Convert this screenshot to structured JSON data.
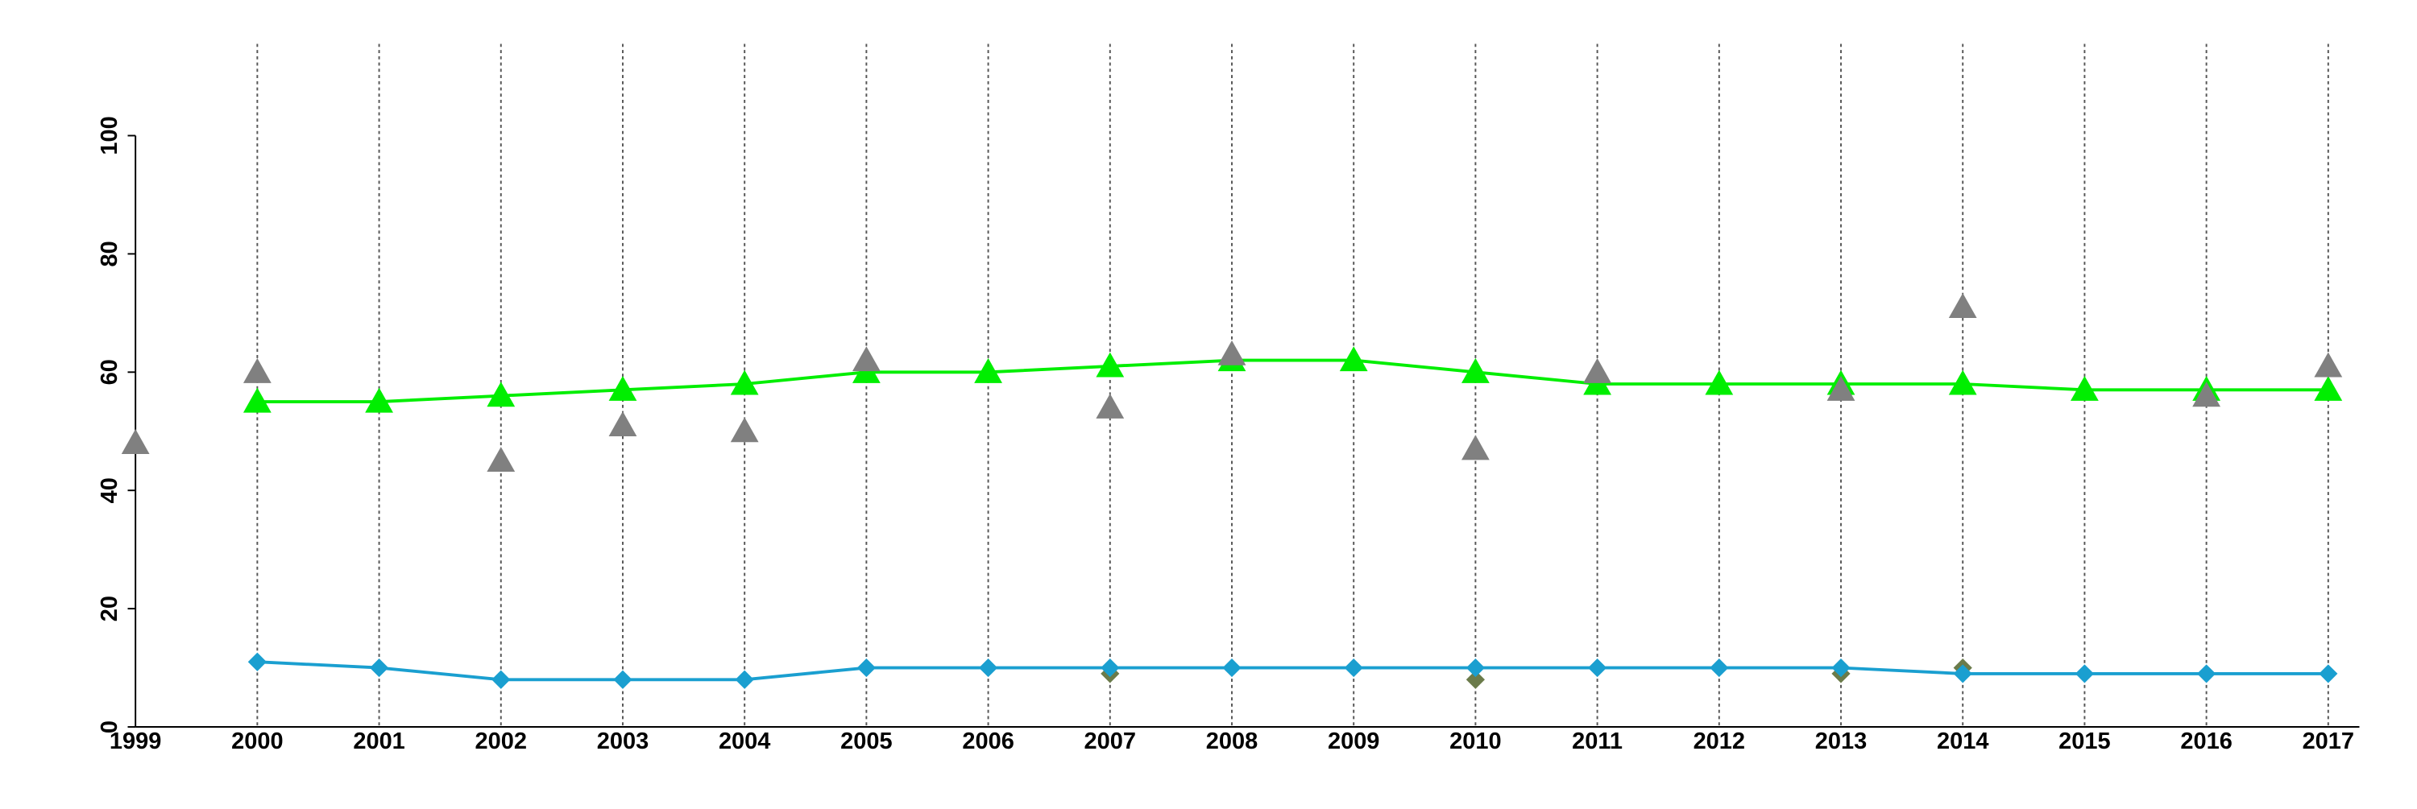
{
  "chart_data": {
    "type": "line",
    "x": [
      1999,
      2000,
      2001,
      2002,
      2003,
      2004,
      2005,
      2006,
      2007,
      2008,
      2009,
      2010,
      2011,
      2012,
      2013,
      2014,
      2015,
      2016,
      2017
    ],
    "series": [
      {
        "color": "#00ee00",
        "line": true,
        "marker": "triangle",
        "values": [
          null,
          55,
          55,
          56,
          57,
          58,
          60,
          60,
          61,
          62,
          62,
          60,
          58,
          58,
          58,
          58,
          57,
          57,
          57
        ]
      },
      {
        "color": "#808080",
        "line": false,
        "marker": "triangle",
        "values": [
          48,
          60,
          null,
          45,
          51,
          50,
          62,
          null,
          54,
          63,
          null,
          47,
          60,
          null,
          57,
          71,
          null,
          56,
          61
        ]
      },
      {
        "color": "#6b7b4a",
        "line": false,
        "marker": "diamond",
        "values": [
          null,
          null,
          null,
          null,
          null,
          null,
          null,
          null,
          9,
          null,
          null,
          8,
          null,
          null,
          9,
          10,
          null,
          null,
          null
        ]
      },
      {
        "color": "#1a9fd0",
        "line": true,
        "marker": "diamond",
        "values": [
          null,
          11,
          10,
          8,
          8,
          8,
          10,
          10,
          10,
          10,
          10,
          10,
          10,
          10,
          10,
          9,
          9,
          9,
          9
        ]
      }
    ],
    "xlim": [
      1999,
      2017
    ],
    "xticks": [
      1999,
      2000,
      2001,
      2002,
      2003,
      2004,
      2005,
      2006,
      2007,
      2008,
      2009,
      2010,
      2011,
      2012,
      2013,
      2014,
      2015,
      2016,
      2017
    ],
    "ylim": [
      0,
      100
    ],
    "yticks": [
      0,
      20,
      40,
      60,
      80,
      100
    ],
    "grid": "x"
  }
}
